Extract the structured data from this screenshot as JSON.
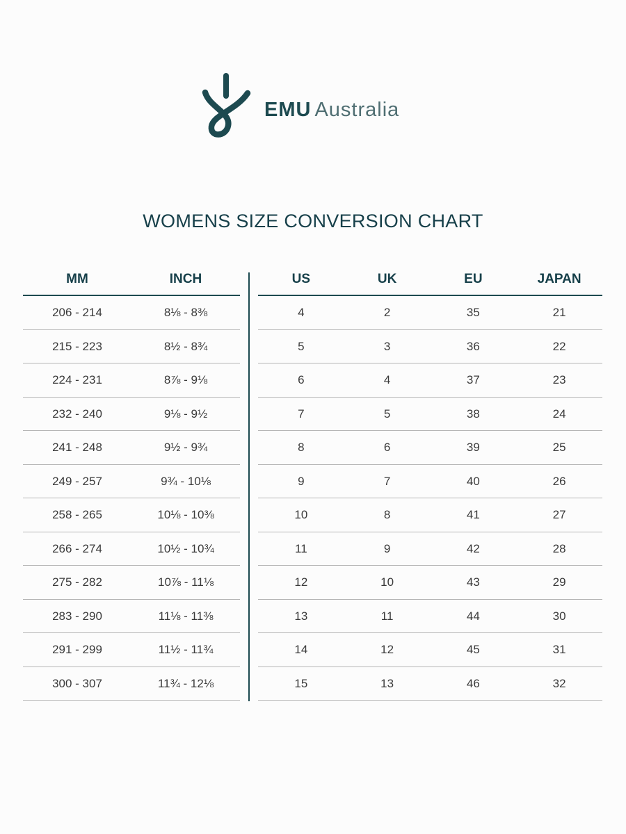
{
  "brand": {
    "name_bold": "EMU",
    "name_light": "Australia"
  },
  "title": "WOMENS SIZE CONVERSION CHART",
  "colors": {
    "brand_teal": "#1d4a50",
    "row_line": "#b5b5b5",
    "text": "#3a3a3a"
  },
  "left_table": {
    "headers": [
      "MM",
      "INCH"
    ],
    "rows": [
      [
        "206  -  214",
        "8⅛  -  8⅜"
      ],
      [
        "215  -  223",
        "8½  -  8¾"
      ],
      [
        "224  -  231",
        "8⅞  -  9⅛"
      ],
      [
        "232  -  240",
        "9⅛  -  9½"
      ],
      [
        "241  -  248",
        "9½  -  9¾"
      ],
      [
        "249  -  257",
        "9¾  -  10⅛"
      ],
      [
        "258  -  265",
        "10⅛  -  10⅜"
      ],
      [
        "266  -  274",
        "10½  -  10¾"
      ],
      [
        "275  -  282",
        "10⅞  -  11⅛"
      ],
      [
        "283  -  290",
        "11⅛  -  11⅜"
      ],
      [
        "291  -  299",
        "11½  -  11¾"
      ],
      [
        "300  -  307",
        "11¾  -  12⅛"
      ]
    ]
  },
  "right_table": {
    "headers": [
      "US",
      "UK",
      "EU",
      "JAPAN"
    ],
    "rows": [
      [
        "4",
        "2",
        "35",
        "21"
      ],
      [
        "5",
        "3",
        "36",
        "22"
      ],
      [
        "6",
        "4",
        "37",
        "23"
      ],
      [
        "7",
        "5",
        "38",
        "24"
      ],
      [
        "8",
        "6",
        "39",
        "25"
      ],
      [
        "9",
        "7",
        "40",
        "26"
      ],
      [
        "10",
        "8",
        "41",
        "27"
      ],
      [
        "11",
        "9",
        "42",
        "28"
      ],
      [
        "12",
        "10",
        "43",
        "29"
      ],
      [
        "13",
        "11",
        "44",
        "30"
      ],
      [
        "14",
        "12",
        "45",
        "31"
      ],
      [
        "15",
        "13",
        "46",
        "32"
      ]
    ]
  }
}
